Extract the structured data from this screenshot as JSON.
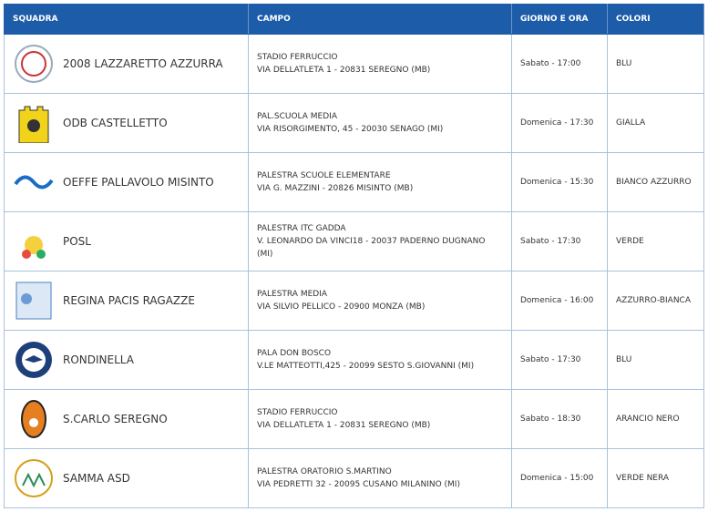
{
  "table": {
    "header": [
      "SQUADRA",
      "CAMPO",
      "GIORNO E ORA",
      "COLORI"
    ],
    "rows": [
      {
        "squadra": "2008 LAZZARETTO AZZURRA",
        "campo": [
          "STADIO FERRUCCIO",
          "VIA DELLATLETA 1 - 20831 SEREGNO (MB)"
        ],
        "giorno": "Sabato - 17:00",
        "colori": "BLU"
      },
      {
        "squadra": "ODB CASTELLETTO",
        "campo": [
          "PAL.SCUOLA MEDIA",
          "VIA RISORGIMENTO, 45 - 20030 SENAGO (MI)"
        ],
        "giorno": "Domenica - 17:30",
        "colori": "GIALLA"
      },
      {
        "squadra": "OEFFE PALLAVOLO MISINTO",
        "campo": [
          "PALESTRA SCUOLE ELEMENTARE",
          "VIA G. MAZZINI - 20826 MISINTO (MB)"
        ],
        "giorno": "Domenica - 15:30",
        "colori": "BIANCO AZZURRO"
      },
      {
        "squadra": "POSL",
        "campo": [
          "PALESTRA ITC GADDA",
          "V. LEONARDO DA VINCI18 - 20037 PADERNO DUGNANO (MI)"
        ],
        "giorno": "Sabato - 17:30",
        "colori": "VERDE"
      },
      {
        "squadra": "REGINA PACIS RAGAZZE",
        "campo": [
          "PALESTRA MEDIA",
          "VIA SILVIO PELLICO - 20900 MONZA (MB)"
        ],
        "giorno": "Domenica - 16:00",
        "colori": "AZZURRO-BIANCA"
      },
      {
        "squadra": "RONDINELLA",
        "campo": [
          "PALA DON BOSCO",
          "V.LE MATTEOTTI,425 - 20099 SESTO S.GIOVANNI (MI)"
        ],
        "giorno": "Sabato - 17:30",
        "colori": "BLU"
      },
      {
        "squadra": "S.CARLO SEREGNO",
        "campo": [
          "STADIO FERRUCCIO",
          "VIA DELLATLETA 1 - 20831 SEREGNO (MB)"
        ],
        "giorno": "Sabato - 18:30",
        "colori": "ARANCIO NERO"
      },
      {
        "squadra": "SAMMA ASD",
        "campo": [
          "PALESTRA ORATORIO S.MARTINO",
          "VIA PEDRETTI 32 - 20095 CUSANO MILANINO (MI)"
        ],
        "giorno": "Domenica - 15:00",
        "colori": "VERDE NERA"
      }
    ]
  }
}
